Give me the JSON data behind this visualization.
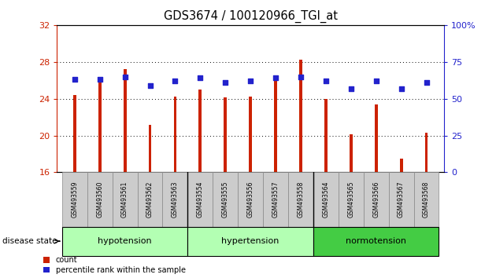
{
  "title": "GDS3674 / 100120966_TGI_at",
  "samples": [
    "GSM493559",
    "GSM493560",
    "GSM493561",
    "GSM493562",
    "GSM493563",
    "GSM493554",
    "GSM493555",
    "GSM493556",
    "GSM493557",
    "GSM493558",
    "GSM493564",
    "GSM493565",
    "GSM493566",
    "GSM493567",
    "GSM493568"
  ],
  "counts": [
    24.4,
    25.8,
    27.2,
    21.2,
    24.2,
    25.0,
    24.1,
    24.2,
    26.4,
    28.2,
    24.0,
    20.1,
    23.4,
    17.5,
    20.3
  ],
  "percentiles": [
    63,
    63,
    65,
    59,
    62,
    64,
    61,
    62,
    64,
    65,
    62,
    57,
    62,
    57,
    61
  ],
  "ylim_left": [
    16,
    32
  ],
  "ylim_right": [
    0,
    100
  ],
  "yticks_left": [
    16,
    20,
    24,
    28,
    32
  ],
  "yticks_right": [
    0,
    25,
    50,
    75,
    100
  ],
  "group_info": [
    {
      "label": "hypotension",
      "start": 0,
      "end": 5,
      "color": "#b3ffb3"
    },
    {
      "label": "hypertension",
      "start": 5,
      "end": 10,
      "color": "#b3ffb3"
    },
    {
      "label": "normotension",
      "start": 10,
      "end": 15,
      "color": "#44cc44"
    }
  ],
  "bar_color": "#cc2200",
  "marker_color": "#2222cc",
  "bar_width": 0.12,
  "bg_color": "#ffffff",
  "tick_label_color_left": "#cc2200",
  "tick_label_color_right": "#2222cc",
  "tick_bg_color": "#cccccc",
  "legend_count_color": "#cc2200",
  "legend_pct_color": "#2222cc",
  "disease_state_label": "disease state"
}
